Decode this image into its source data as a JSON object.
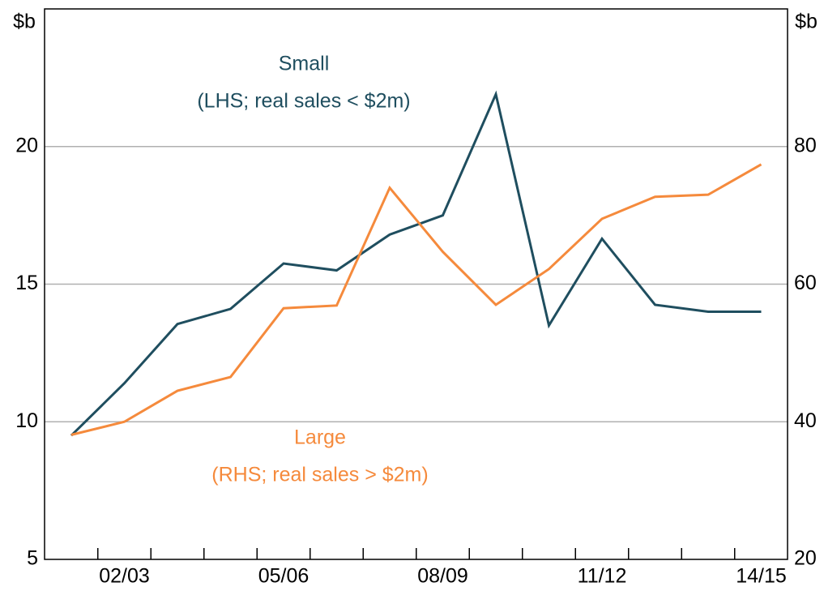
{
  "chart_data": {
    "type": "line",
    "y_unit": "$b",
    "y2_unit": "$b",
    "categories": [
      null,
      "02/03",
      null,
      null,
      "05/06",
      null,
      null,
      "08/09",
      null,
      null,
      "11/12",
      null,
      null,
      "14/15"
    ],
    "series": [
      {
        "name": "Small",
        "color": "#1f4e5f",
        "axis": "y",
        "values": [
          9.5,
          11.4,
          13.55,
          14.1,
          15.75,
          15.5,
          16.8,
          17.5,
          21.9,
          13.5,
          16.65,
          14.25,
          14.0,
          14.0
        ]
      },
      {
        "name": "Large",
        "color": "#f58a3c",
        "axis": "y2",
        "values": [
          38.1,
          40,
          44.5,
          46.5,
          56.5,
          56.9,
          74,
          64.7,
          57,
          62.2,
          69.5,
          72.7,
          73,
          77.4
        ]
      }
    ],
    "annotations": [
      {
        "series": 0,
        "lines": [
          "Small",
          "(LHS; real sales < $2m)"
        ]
      },
      {
        "series": 1,
        "lines": [
          "Large",
          "(RHS; real sales > $2m)"
        ]
      }
    ],
    "ylim": [
      5,
      25
    ],
    "yticks": [
      5,
      10,
      15,
      20
    ],
    "y2lim": [
      20,
      100
    ],
    "y2ticks": [
      20,
      40,
      60,
      80
    ],
    "grid": true
  }
}
